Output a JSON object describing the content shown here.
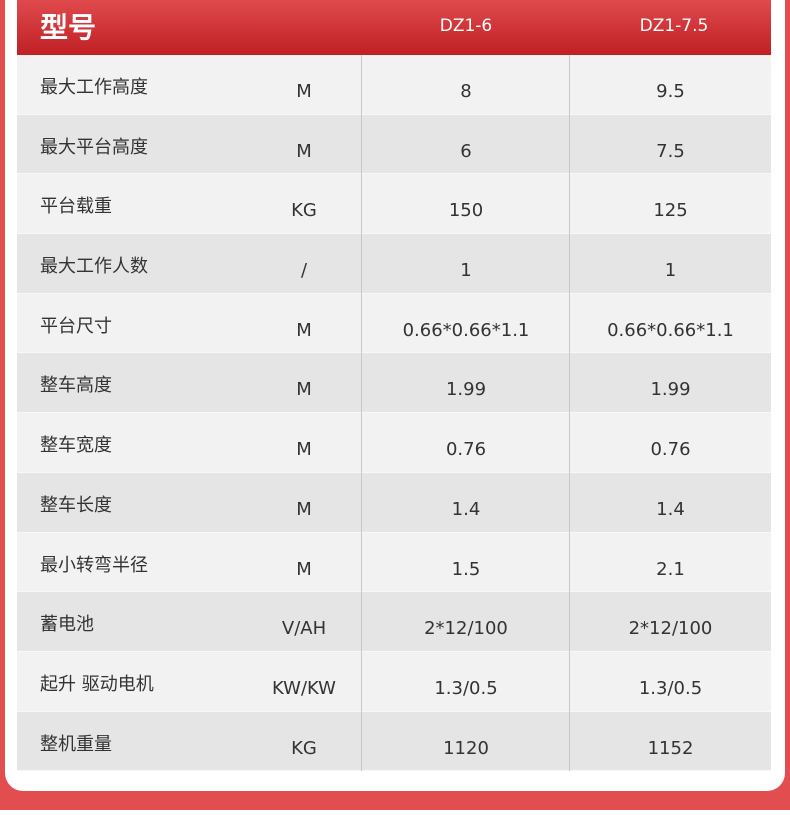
{
  "header": {
    "title": "型号",
    "models": [
      "DZ1-6",
      "DZ1-7.5"
    ]
  },
  "rows": [
    {
      "label": "最大工作高度",
      "unit": "M",
      "v1": "8",
      "v2": "9.5"
    },
    {
      "label": "最大平台高度",
      "unit": "M",
      "v1": "6",
      "v2": "7.5"
    },
    {
      "label": "平台载重",
      "unit": "KG",
      "v1": "150",
      "v2": "125"
    },
    {
      "label": "最大工作人数",
      "unit": "/",
      "v1": "1",
      "v2": "1"
    },
    {
      "label": "平台尺寸",
      "unit": "M",
      "v1": "0.66*0.66*1.1",
      "v2": "0.66*0.66*1.1"
    },
    {
      "label": "整车高度",
      "unit": "M",
      "v1": "1.99",
      "v2": "1.99"
    },
    {
      "label": "整车宽度",
      "unit": "M",
      "v1": "0.76",
      "v2": "0.76"
    },
    {
      "label": "整车长度",
      "unit": "M",
      "v1": "1.4",
      "v2": "1.4"
    },
    {
      "label": "最小转弯半径",
      "unit": "M",
      "v1": "1.5",
      "v2": "2.1"
    },
    {
      "label": "蓄电池",
      "unit": "V/AH",
      "v1": "2*12/100",
      "v2": "2*12/100"
    },
    {
      "label": "起升 驱动电机",
      "unit": "KW/KW",
      "v1": "1.3/0.5",
      "v2": "1.3/0.5"
    },
    {
      "label": "整机重量",
      "unit": "KG",
      "v1": "1120",
      "v2": "1152"
    }
  ],
  "colors": {
    "accent": "#e24d4f",
    "header": "#c02024"
  }
}
